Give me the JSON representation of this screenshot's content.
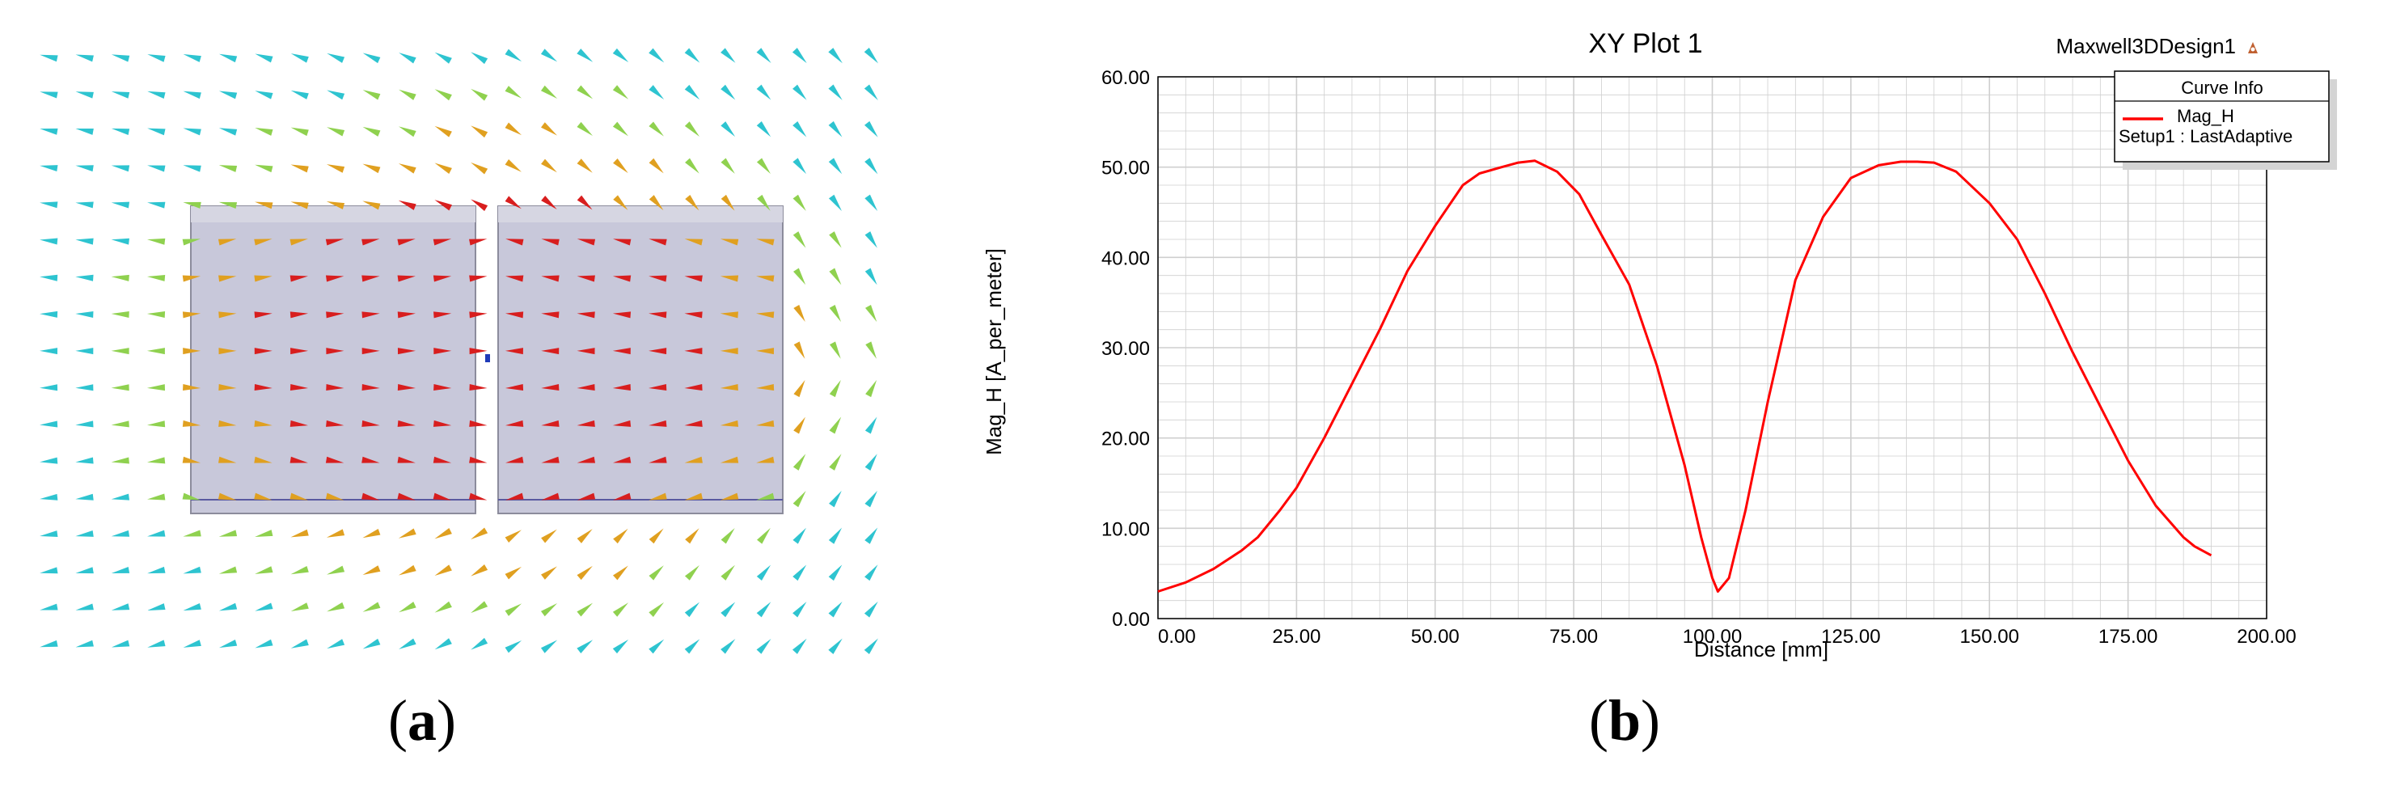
{
  "panel_a": {
    "caption_letter": "a",
    "colors": {
      "high": "#d81e1e",
      "mid": "#e0a020",
      "low": "#8fd14f",
      "lowest": "#2ec4d0",
      "blocks": "#c8c8da",
      "gap_marker": "#1f3ab8"
    }
  },
  "panel_b": {
    "caption_letter": "b",
    "app_label": "Maxwell3DDesign1",
    "legend_header": "Curve Info",
    "legend_series": "Mag_H",
    "legend_setup": "Setup1 : LastAdaptive",
    "colors": {
      "curve": "#ff0000",
      "grid": "#cfcfcf",
      "axis": "#000000"
    }
  },
  "chart_data": {
    "type": "line",
    "title": "XY Plot 1",
    "xlabel": "Distance [mm]",
    "ylabel": "Mag_H [A_per_meter]",
    "xlim": [
      0,
      200
    ],
    "ylim": [
      0,
      60
    ],
    "x_ticks": [
      "0.00",
      "25.00",
      "50.00",
      "75.00",
      "100.00",
      "125.00",
      "150.00",
      "175.00",
      "200.00"
    ],
    "y_ticks": [
      "0.00",
      "10.00",
      "20.00",
      "30.00",
      "40.00",
      "50.00",
      "60.00"
    ],
    "grid": true,
    "legend_position": "top-right",
    "series": [
      {
        "name": "Mag_H",
        "x": [
          0,
          5,
          10,
          15,
          18,
          22,
          25,
          30,
          35,
          40,
          45,
          50,
          55,
          58,
          62,
          65,
          68,
          72,
          76,
          80,
          85,
          90,
          95,
          98,
          100,
          101,
          103,
          106,
          110,
          115,
          120,
          125,
          130,
          134,
          137,
          140,
          144,
          150,
          155,
          160,
          165,
          170,
          175,
          180,
          185,
          187,
          190
        ],
        "y": [
          3.0,
          4.0,
          5.5,
          7.5,
          9.0,
          12.0,
          14.5,
          20.0,
          26.0,
          32.0,
          38.5,
          43.5,
          48.0,
          49.3,
          50.0,
          50.5,
          50.7,
          49.5,
          47.0,
          42.5,
          37.0,
          28.0,
          17.0,
          9.0,
          4.5,
          3.0,
          4.5,
          12.0,
          24.0,
          37.5,
          44.5,
          48.8,
          50.2,
          50.6,
          50.6,
          50.5,
          49.5,
          46.0,
          42.0,
          36.0,
          29.5,
          23.5,
          17.5,
          12.5,
          9.0,
          8.0,
          7.0
        ]
      }
    ]
  }
}
